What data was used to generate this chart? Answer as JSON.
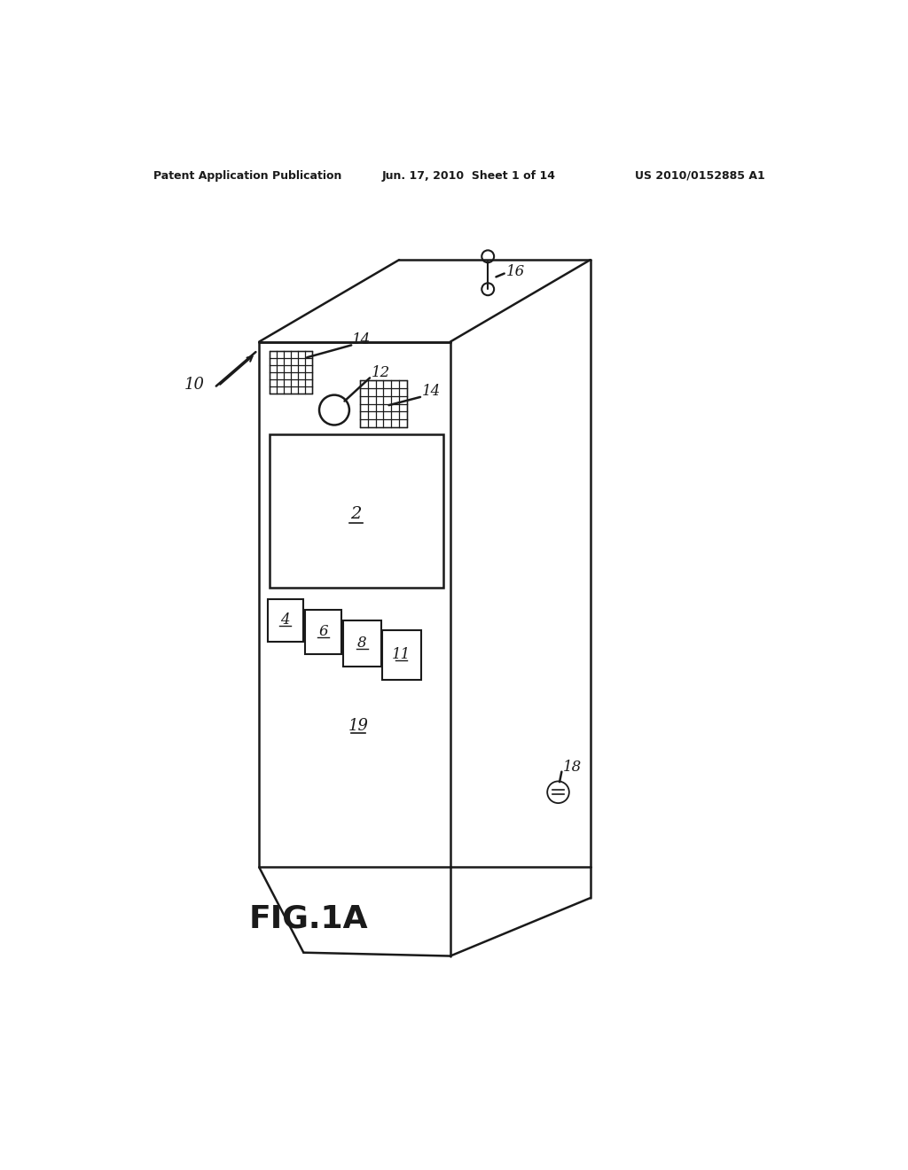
{
  "bg_color": "#ffffff",
  "line_color": "#1a1a1a",
  "header_left": "Patent Application Publication",
  "header_mid": "Jun. 17, 2010  Sheet 1 of 14",
  "header_right": "US 2010/0152885 A1",
  "fig_label": "FIG.1A",
  "label_10": "10",
  "label_12": "12",
  "label_14a": "14",
  "label_14b": "14",
  "label_16": "16",
  "label_2": "2",
  "label_4": "4",
  "label_6": "6",
  "label_8": "8",
  "label_11": "11",
  "label_18": "18",
  "label_19": "19"
}
